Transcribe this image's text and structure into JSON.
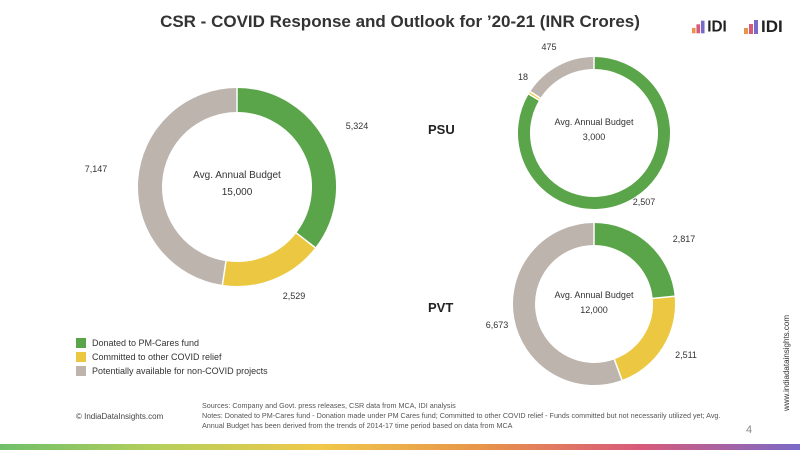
{
  "title": "CSR - COVID Response and Outlook for ’20-21 (INR Crores)",
  "logos": {
    "logo_text": "IDI"
  },
  "colors": {
    "donated": "#5aa549",
    "committed": "#ecc842",
    "potential": "#bdb4ad"
  },
  "chart_data": [
    {
      "type": "pie",
      "name": "",
      "center_label": "Avg. Annual Budget",
      "center_value": "15,000",
      "slices": [
        {
          "label": "Donated to PM-Cares fund",
          "value": 5324,
          "value_label": "5,324"
        },
        {
          "label": "Committed to other COVID relief",
          "value": 2529,
          "value_label": "2,529"
        },
        {
          "label": "Potentially available for non-COVID projects",
          "value": 7147,
          "value_label": "7,147"
        }
      ]
    },
    {
      "type": "pie",
      "name": "PSU",
      "center_label": "Avg. Annual Budget",
      "center_value": "3,000",
      "slices": [
        {
          "label": "Donated to PM-Cares fund",
          "value": 2507,
          "value_label": "2,507"
        },
        {
          "label": "Committed to other COVID relief",
          "value": 18,
          "value_label": "18"
        },
        {
          "label": "Potentially available for non-COVID projects",
          "value": 475,
          "value_label": "475"
        }
      ]
    },
    {
      "type": "pie",
      "name": "PVT",
      "center_label": "Avg. Annual Budget",
      "center_value": "12,000",
      "slices": [
        {
          "label": "Donated to PM-Cares fund",
          "value": 2817,
          "value_label": "2,817"
        },
        {
          "label": "Committed to other COVID relief",
          "value": 2511,
          "value_label": "2,511"
        },
        {
          "label": "Potentially available for non-COVID projects",
          "value": 6673,
          "value_label": "6,673"
        }
      ]
    }
  ],
  "legend": [
    {
      "label": "Donated to PM-Cares fund"
    },
    {
      "label": "Committed to other COVID relief"
    },
    {
      "label": "Potentially available for non-COVID projects"
    }
  ],
  "footer": {
    "copyright": "© IndiaDataInsights.com",
    "sources": "Sources: Company and Govt. press releases, CSR data from MCA, IDI analysis",
    "notes": "Notes: Donated to PM-Cares fund - Donation made under PM Cares fund; Committed to other COVID relief - Funds committed but not necessarily utilized yet; Avg. Annual Budget has been derived from the trends of 2014-17 time period based on data from MCA",
    "page_number": "4",
    "website": "www.indiadatainsights.com"
  }
}
